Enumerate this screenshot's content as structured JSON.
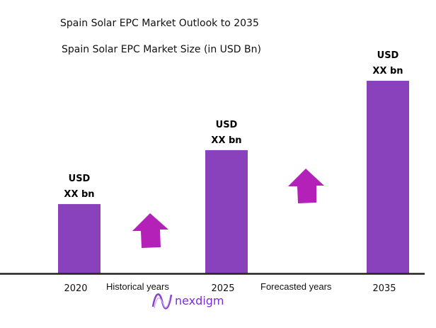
{
  "chart_data": {
    "type": "bar",
    "title": "Spain Solar EPC Market Outlook to 2035",
    "subtitle": "Spain Solar EPC Market Size (in USD Bn)",
    "categories": [
      "2020",
      "2025",
      "2035"
    ],
    "values": [
      36,
      64,
      100
    ],
    "value_note": "relative bar heights, 2035 = 100",
    "data_labels": [
      [
        "USD",
        "XX bn"
      ],
      [
        "USD",
        "XX bn"
      ],
      [
        "USD",
        "XX bn"
      ]
    ],
    "annotations": [
      "Historical years",
      "Forecasted years"
    ],
    "grid": false,
    "colors": {
      "bar": "#8a41bc",
      "arrow": "#b321b9",
      "axis": "#222222"
    }
  },
  "brand": {
    "name": "nexdigm",
    "color": "#7b2fd0"
  }
}
